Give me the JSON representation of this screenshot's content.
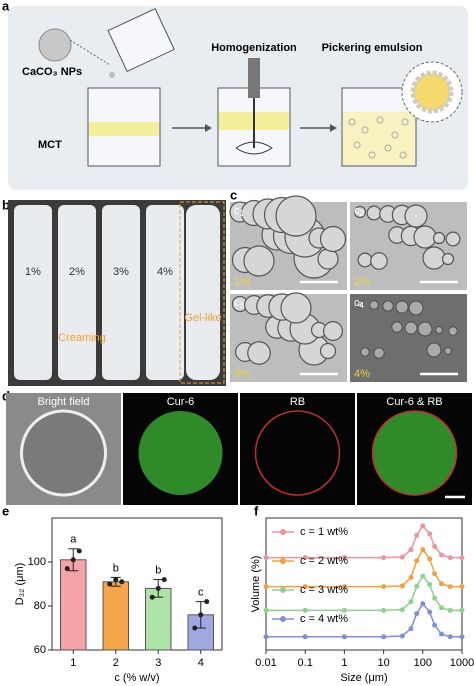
{
  "panels": {
    "a": {
      "label": "a",
      "nps": "CaCO₃ NPs",
      "homogenization": "Homogenization",
      "pickering": "Pickering emulsion",
      "mct": "MCT"
    },
    "b": {
      "label": "b",
      "tubes": [
        "1%",
        "2%",
        "3%",
        "4%"
      ],
      "creaming": "Creaming",
      "gel": "Gel-like"
    },
    "c": {
      "label": "c",
      "images": [
        {
          "tag": "c",
          "sub": "1",
          "conc": "1%"
        },
        {
          "tag": "c",
          "sub": "2",
          "conc": "2%"
        },
        {
          "tag": "c",
          "sub": "3",
          "conc": "3%"
        },
        {
          "tag": "c",
          "sub": "4",
          "conc": "4%"
        }
      ]
    },
    "d": {
      "label": "d",
      "images": [
        "Bright field",
        "Cur-6",
        "RB",
        "Cur-6 & RB"
      ]
    }
  },
  "chart_data": [
    {
      "type": "bar",
      "label": "e",
      "xlabel": "c (% w/v)",
      "ylabel": "D₃₂ (μm)",
      "categories": [
        "1",
        "2",
        "3",
        "4"
      ],
      "values": [
        101,
        91,
        88,
        76
      ],
      "errors": [
        5,
        2,
        4,
        6
      ],
      "points": [
        [
          97,
          101,
          105
        ],
        [
          90,
          92,
          91
        ],
        [
          84,
          88,
          92
        ],
        [
          70,
          76,
          82
        ]
      ],
      "annotations": [
        "a",
        "b",
        "b",
        "c"
      ],
      "colors": [
        "#f4a3a8",
        "#f6a54a",
        "#ade3a6",
        "#9fa9e0"
      ],
      "ylim": [
        60,
        120
      ],
      "yticks": [
        60,
        80,
        100
      ]
    },
    {
      "type": "line",
      "label": "f",
      "xlabel": "Size (μm)",
      "ylabel": "Volume (%)",
      "log_x": true,
      "x": [
        0.01,
        0.1,
        1,
        10,
        30,
        50,
        70,
        100,
        150,
        200,
        300,
        500,
        1000
      ],
      "xlim": [
        0.01,
        1000
      ],
      "xticks": [
        0.01,
        0.1,
        1,
        10,
        100,
        1000
      ],
      "ylim": [
        0,
        50
      ],
      "series": [
        {
          "name": "c  =  1 wt%",
          "color": "#e8959c",
          "values": [
            35,
            35,
            35,
            35,
            35.2,
            38,
            43.4,
            47,
            44,
            39.2,
            36,
            35,
            35
          ]
        },
        {
          "name": "c = 2 wt%",
          "color": "#f0a040",
          "values": [
            24,
            24,
            24,
            24,
            24.3,
            27.5,
            33.8,
            38,
            34.5,
            28.9,
            25.1,
            24,
            24
          ]
        },
        {
          "name": "c = 3 wt%",
          "color": "#8fd08f",
          "values": [
            15,
            15,
            15,
            15,
            15.3,
            18.3,
            24.1,
            28,
            24.8,
            19.6,
            16,
            15,
            15
          ]
        },
        {
          "name": "c = 4 wt%",
          "color": "#8090d0",
          "values": [
            5,
            5,
            5,
            5,
            5.3,
            8.1,
            13.8,
            17.5,
            14.4,
            9.4,
            6,
            5,
            5
          ]
        }
      ]
    }
  ]
}
